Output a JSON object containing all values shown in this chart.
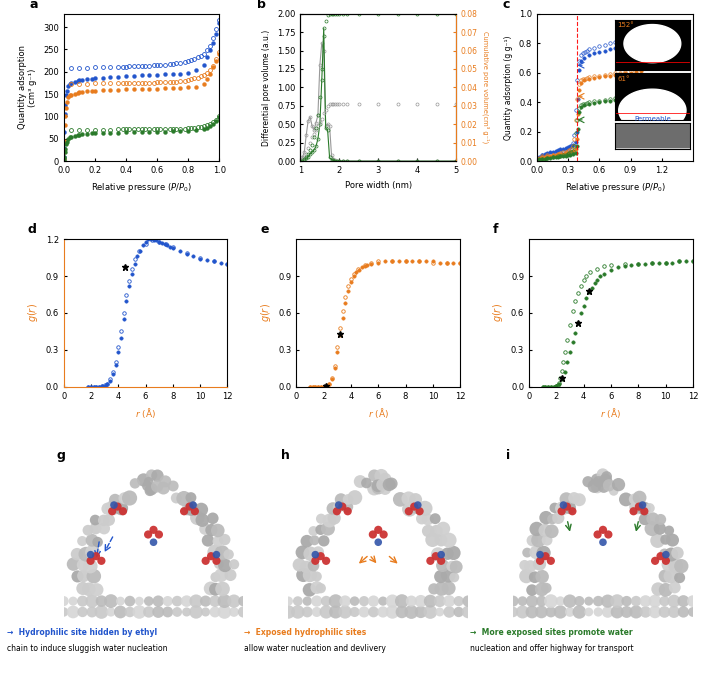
{
  "panel_a": {
    "p_ads": [
      0.001,
      0.003,
      0.005,
      0.008,
      0.01,
      0.015,
      0.02,
      0.03,
      0.04,
      0.05,
      0.07,
      0.09,
      0.1,
      0.12,
      0.15,
      0.18,
      0.2,
      0.25,
      0.3,
      0.35,
      0.4,
      0.45,
      0.5,
      0.55,
      0.6,
      0.65,
      0.7,
      0.75,
      0.8,
      0.85,
      0.9,
      0.92,
      0.94,
      0.96,
      0.98,
      1.0
    ],
    "blue_ads_q": [
      10,
      30,
      65,
      105,
      125,
      148,
      158,
      168,
      172,
      175,
      178,
      180,
      181,
      182,
      183,
      184,
      185,
      187,
      188,
      189,
      190,
      191,
      192,
      193,
      193,
      194,
      195,
      196,
      198,
      203,
      215,
      232,
      248,
      265,
      285,
      310
    ],
    "blue_des_p": [
      1.0,
      0.98,
      0.96,
      0.94,
      0.92,
      0.9,
      0.88,
      0.86,
      0.84,
      0.82,
      0.8,
      0.78,
      0.75,
      0.72,
      0.7,
      0.68,
      0.65,
      0.62,
      0.6,
      0.58,
      0.55,
      0.52,
      0.5,
      0.48,
      0.45,
      0.42,
      0.4,
      0.38,
      0.35,
      0.3,
      0.25,
      0.2,
      0.15,
      0.1,
      0.05
    ],
    "blue_des_q": [
      315,
      295,
      275,
      258,
      248,
      240,
      235,
      232,
      228,
      226,
      224,
      222,
      220,
      219,
      218,
      217,
      216,
      215,
      215,
      214,
      213,
      213,
      213,
      212,
      212,
      212,
      211,
      211,
      211,
      210,
      210,
      210,
      209,
      209,
      209
    ],
    "orange_ads_q": [
      5,
      20,
      45,
      80,
      100,
      120,
      132,
      143,
      147,
      149,
      151,
      153,
      154,
      155,
      156,
      157,
      158,
      159,
      160,
      160,
      161,
      161,
      162,
      162,
      162,
      163,
      163,
      164,
      165,
      166,
      172,
      183,
      195,
      210,
      225,
      240
    ],
    "orange_des_p": [
      1.0,
      0.98,
      0.96,
      0.94,
      0.92,
      0.9,
      0.88,
      0.86,
      0.84,
      0.82,
      0.8,
      0.78,
      0.75,
      0.72,
      0.7,
      0.68,
      0.65,
      0.62,
      0.6,
      0.58,
      0.55,
      0.52,
      0.5,
      0.48,
      0.45,
      0.42,
      0.4,
      0.38,
      0.35,
      0.3,
      0.25,
      0.2,
      0.15,
      0.1,
      0.05
    ],
    "orange_des_q": [
      245,
      228,
      213,
      205,
      198,
      193,
      190,
      187,
      185,
      183,
      181,
      180,
      179,
      178,
      177,
      177,
      176,
      176,
      176,
      175,
      175,
      175,
      175,
      175,
      175,
      175,
      174,
      174,
      174,
      174,
      174,
      174,
      173,
      173,
      173
    ],
    "green_ads_q": [
      1,
      5,
      10,
      20,
      28,
      38,
      44,
      50,
      53,
      55,
      57,
      58,
      59,
      60,
      61,
      62,
      62,
      63,
      64,
      64,
      65,
      65,
      65,
      66,
      66,
      66,
      67,
      67,
      68,
      69,
      71,
      74,
      78,
      84,
      90,
      98
    ],
    "green_des_p": [
      1.0,
      0.98,
      0.96,
      0.94,
      0.92,
      0.9,
      0.88,
      0.86,
      0.84,
      0.82,
      0.8,
      0.78,
      0.75,
      0.72,
      0.7,
      0.68,
      0.65,
      0.62,
      0.6,
      0.58,
      0.55,
      0.52,
      0.5,
      0.48,
      0.45,
      0.42,
      0.4,
      0.38,
      0.35,
      0.3,
      0.25,
      0.2,
      0.15,
      0.1,
      0.05
    ],
    "green_des_q": [
      100,
      93,
      87,
      83,
      80,
      78,
      77,
      76,
      75,
      74,
      74,
      73,
      73,
      73,
      72,
      72,
      72,
      72,
      72,
      71,
      71,
      71,
      71,
      71,
      71,
      71,
      71,
      71,
      71,
      70,
      70,
      70,
      70,
      70,
      70
    ],
    "xlabel": "Relative pressure ($P/P_0$)",
    "ylabel": "Quantity adsorption\n(cm³ g⁻¹)",
    "ylim": [
      0,
      330
    ],
    "xlim": [
      0,
      1.0
    ],
    "label": "a"
  },
  "panel_b": {
    "pore_widths_fine": [
      1.0,
      1.05,
      1.1,
      1.15,
      1.2,
      1.25,
      1.3,
      1.35,
      1.4,
      1.45,
      1.5,
      1.55,
      1.6,
      1.65,
      1.7,
      1.75,
      1.8,
      1.85,
      1.9,
      1.95,
      2.0,
      2.1,
      2.2,
      2.5,
      3.0,
      3.5,
      4.0,
      4.5,
      5.0
    ],
    "diff_pore_vol_gray": [
      0.0,
      0.05,
      0.12,
      0.35,
      0.55,
      0.6,
      0.48,
      0.42,
      0.52,
      0.62,
      1.3,
      1.6,
      1.5,
      0.48,
      0.5,
      0.48,
      0.08,
      0.03,
      0.01,
      0.005,
      0.003,
      0.002,
      0.001,
      0.0,
      0.0,
      0.0,
      0.0,
      0.0,
      0.0
    ],
    "diff_pore_vol_green": [
      0.0,
      0.0,
      0.02,
      0.04,
      0.06,
      0.1,
      0.12,
      0.15,
      0.2,
      0.3,
      0.5,
      1.1,
      1.8,
      0.45,
      0.42,
      0.05,
      0.02,
      0.01,
      0.005,
      0.002,
      0.001,
      0.0,
      0.0,
      0.0,
      0.0,
      0.0,
      0.0,
      0.0,
      0.0
    ],
    "cum_pore_vol_gray": [
      0.0,
      0.001,
      0.002,
      0.004,
      0.007,
      0.01,
      0.013,
      0.015,
      0.017,
      0.019,
      0.021,
      0.023,
      0.026,
      0.028,
      0.03,
      0.031,
      0.031,
      0.031,
      0.031,
      0.031,
      0.031,
      0.031,
      0.031,
      0.031,
      0.031,
      0.031,
      0.031,
      0.031,
      0.031
    ],
    "cum_pore_vol_green": [
      0.0,
      0.0,
      0.001,
      0.002,
      0.004,
      0.006,
      0.009,
      0.013,
      0.018,
      0.025,
      0.035,
      0.05,
      0.068,
      0.076,
      0.079,
      0.08,
      0.08,
      0.08,
      0.08,
      0.08,
      0.08,
      0.08,
      0.08,
      0.08,
      0.08,
      0.08,
      0.08,
      0.08,
      0.08
    ],
    "xlabel": "Pore width (nm)",
    "ylabel_left": "Differential pore volume (a.u.)",
    "ylabel_right": "Cumulative pore volume(cm³ g⁻¹)",
    "ylim_left": [
      0,
      2.0
    ],
    "ylim_right": [
      0,
      0.08
    ],
    "xlim": [
      1.0,
      5.0
    ],
    "label": "b"
  },
  "panel_c": {
    "blue_ads_p": [
      0.0,
      0.02,
      0.05,
      0.08,
      0.1,
      0.12,
      0.15,
      0.18,
      0.2,
      0.22,
      0.25,
      0.28,
      0.3,
      0.32,
      0.35,
      0.37,
      0.38,
      0.39,
      0.4,
      0.42,
      0.45,
      0.5,
      0.55,
      0.6,
      0.65,
      0.7,
      0.75,
      0.8,
      0.85,
      0.9,
      0.95,
      1.0
    ],
    "blue_ads_q": [
      0.02,
      0.03,
      0.04,
      0.05,
      0.055,
      0.06,
      0.065,
      0.07,
      0.075,
      0.08,
      0.085,
      0.09,
      0.095,
      0.1,
      0.11,
      0.13,
      0.2,
      0.42,
      0.62,
      0.68,
      0.7,
      0.72,
      0.73,
      0.74,
      0.75,
      0.76,
      0.77,
      0.78,
      0.79,
      0.8,
      0.82,
      0.84
    ],
    "blue_des_p": [
      1.0,
      0.95,
      0.9,
      0.85,
      0.8,
      0.75,
      0.7,
      0.65,
      0.6,
      0.55,
      0.5,
      0.48,
      0.46,
      0.44,
      0.42,
      0.4,
      0.38,
      0.37,
      0.36,
      0.35,
      0.33,
      0.31,
      0.3,
      0.28,
      0.25,
      0.22,
      0.2,
      0.15,
      0.1,
      0.05
    ],
    "blue_des_q": [
      0.88,
      0.86,
      0.84,
      0.83,
      0.82,
      0.81,
      0.8,
      0.79,
      0.78,
      0.77,
      0.76,
      0.75,
      0.74,
      0.73,
      0.72,
      0.68,
      0.55,
      0.35,
      0.18,
      0.12,
      0.1,
      0.09,
      0.085,
      0.08,
      0.07,
      0.065,
      0.06,
      0.055,
      0.05,
      0.045
    ],
    "orange_ads_p": [
      0.0,
      0.02,
      0.05,
      0.08,
      0.1,
      0.12,
      0.15,
      0.18,
      0.2,
      0.22,
      0.25,
      0.28,
      0.3,
      0.32,
      0.35,
      0.37,
      0.38,
      0.39,
      0.4,
      0.42,
      0.45,
      0.5,
      0.55,
      0.6,
      0.65,
      0.7,
      0.75,
      0.8,
      0.85,
      0.9,
      0.95,
      1.0
    ],
    "orange_ads_q": [
      0.015,
      0.02,
      0.025,
      0.03,
      0.035,
      0.038,
      0.04,
      0.043,
      0.046,
      0.048,
      0.052,
      0.055,
      0.058,
      0.062,
      0.068,
      0.08,
      0.15,
      0.32,
      0.48,
      0.53,
      0.55,
      0.56,
      0.565,
      0.57,
      0.575,
      0.58,
      0.585,
      0.59,
      0.595,
      0.6,
      0.605,
      0.61
    ],
    "orange_des_p": [
      1.0,
      0.95,
      0.9,
      0.85,
      0.8,
      0.75,
      0.7,
      0.65,
      0.6,
      0.55,
      0.5,
      0.48,
      0.46,
      0.44,
      0.42,
      0.4,
      0.38,
      0.37,
      0.36,
      0.35,
      0.33,
      0.31,
      0.3,
      0.28,
      0.25,
      0.22,
      0.2,
      0.15,
      0.1,
      0.05
    ],
    "orange_des_q": [
      0.63,
      0.62,
      0.61,
      0.605,
      0.6,
      0.595,
      0.59,
      0.585,
      0.58,
      0.575,
      0.57,
      0.565,
      0.56,
      0.555,
      0.55,
      0.52,
      0.42,
      0.28,
      0.15,
      0.1,
      0.085,
      0.075,
      0.07,
      0.065,
      0.06,
      0.055,
      0.05,
      0.045,
      0.04,
      0.035
    ],
    "green_ads_p": [
      0.0,
      0.02,
      0.05,
      0.08,
      0.1,
      0.12,
      0.15,
      0.18,
      0.2,
      0.22,
      0.25,
      0.28,
      0.3,
      0.32,
      0.35,
      0.37,
      0.38,
      0.39,
      0.4,
      0.42,
      0.45,
      0.5,
      0.55,
      0.6,
      0.65,
      0.7,
      0.75,
      0.8,
      0.85,
      0.9,
      0.95,
      1.0
    ],
    "green_ads_q": [
      0.01,
      0.012,
      0.015,
      0.018,
      0.02,
      0.022,
      0.025,
      0.028,
      0.03,
      0.032,
      0.035,
      0.038,
      0.04,
      0.043,
      0.048,
      0.056,
      0.1,
      0.22,
      0.33,
      0.37,
      0.38,
      0.39,
      0.395,
      0.4,
      0.405,
      0.41,
      0.415,
      0.42,
      0.425,
      0.43,
      0.435,
      0.44
    ],
    "green_des_p": [
      1.0,
      0.95,
      0.9,
      0.85,
      0.8,
      0.75,
      0.7,
      0.65,
      0.6,
      0.55,
      0.5,
      0.48,
      0.46,
      0.44,
      0.42,
      0.4,
      0.38,
      0.37,
      0.36,
      0.35,
      0.33,
      0.31,
      0.3,
      0.28,
      0.25,
      0.22,
      0.2,
      0.15,
      0.1,
      0.05
    ],
    "green_des_q": [
      0.46,
      0.45,
      0.44,
      0.435,
      0.43,
      0.425,
      0.42,
      0.415,
      0.41,
      0.405,
      0.4,
      0.395,
      0.39,
      0.385,
      0.38,
      0.36,
      0.28,
      0.19,
      0.1,
      0.07,
      0.06,
      0.055,
      0.05,
      0.045,
      0.04,
      0.035,
      0.032,
      0.028,
      0.022,
      0.018
    ],
    "vline_x": 0.38,
    "xlabel": "Relative pressure ($P/P_0$)",
    "ylabel": "Quantity adsorption (g g⁻¹)",
    "xlim": [
      0,
      1.5
    ],
    "label": "c"
  },
  "panel_d": {
    "r_filled": [
      1.8,
      2.0,
      2.2,
      2.4,
      2.6,
      2.8,
      3.0,
      3.2,
      3.4,
      3.6,
      3.8,
      4.0,
      4.2,
      4.4,
      4.6,
      4.8,
      5.0,
      5.2,
      5.4,
      5.6,
      5.8,
      6.0,
      6.2,
      6.4,
      6.6,
      6.8,
      7.0,
      7.2,
      7.4,
      7.6,
      7.8,
      8.0,
      8.5,
      9.0,
      9.5,
      10.0,
      10.5,
      11.0,
      11.5,
      12.0
    ],
    "g_filled": [
      0.0,
      0.0,
      0.0,
      0.0,
      0.0,
      0.005,
      0.01,
      0.02,
      0.05,
      0.1,
      0.18,
      0.28,
      0.4,
      0.55,
      0.7,
      0.82,
      0.92,
      1.0,
      1.06,
      1.1,
      1.15,
      1.18,
      1.2,
      1.2,
      1.19,
      1.19,
      1.18,
      1.17,
      1.16,
      1.15,
      1.14,
      1.13,
      1.1,
      1.08,
      1.06,
      1.04,
      1.03,
      1.02,
      1.01,
      1.0
    ],
    "r_open": [
      1.8,
      2.0,
      2.2,
      2.4,
      2.6,
      2.8,
      3.0,
      3.2,
      3.4,
      3.6,
      3.8,
      4.0,
      4.2,
      4.4,
      4.6,
      4.8,
      5.0,
      5.2,
      5.5,
      6.0,
      6.5,
      7.0,
      7.5,
      8.0,
      9.0,
      10.0,
      11.0,
      12.0
    ],
    "g_open": [
      0.0,
      0.0,
      0.0,
      0.0,
      0.0,
      0.006,
      0.012,
      0.022,
      0.06,
      0.12,
      0.2,
      0.32,
      0.45,
      0.6,
      0.75,
      0.86,
      0.96,
      1.04,
      1.1,
      1.16,
      1.19,
      1.18,
      1.16,
      1.14,
      1.09,
      1.05,
      1.02,
      1.0
    ],
    "color": "#2255cc",
    "xlabel": "$r$ (Å)",
    "ylabel": "$g(r)$",
    "xlim": [
      0,
      12
    ],
    "ylim": [
      0,
      1.2
    ],
    "yticks": [
      0.0,
      0.3,
      0.6,
      0.9,
      1.2
    ],
    "label": "d",
    "star_r": [
      4.5
    ],
    "star_g": [
      0.97
    ]
  },
  "panel_e": {
    "r_filled": [
      1.0,
      1.2,
      1.4,
      1.6,
      1.8,
      2.0,
      2.2,
      2.4,
      2.6,
      2.8,
      3.0,
      3.2,
      3.4,
      3.6,
      3.8,
      4.0,
      4.2,
      4.4,
      4.6,
      4.8,
      5.0,
      5.2,
      5.5,
      6.0,
      6.5,
      7.0,
      7.5,
      8.0,
      8.5,
      9.0,
      9.5,
      10.0,
      10.5,
      11.0,
      11.5,
      12.0
    ],
    "g_filled": [
      0.0,
      0.0,
      0.0,
      0.0,
      0.0,
      0.0,
      0.005,
      0.02,
      0.06,
      0.15,
      0.28,
      0.42,
      0.56,
      0.68,
      0.78,
      0.85,
      0.9,
      0.93,
      0.95,
      0.97,
      0.98,
      0.99,
      1.0,
      1.01,
      1.02,
      1.02,
      1.02,
      1.02,
      1.02,
      1.02,
      1.02,
      1.02,
      1.01,
      1.01,
      1.01,
      1.01
    ],
    "r_open": [
      1.0,
      1.2,
      1.4,
      1.6,
      1.8,
      2.0,
      2.2,
      2.4,
      2.6,
      2.8,
      3.0,
      3.2,
      3.4,
      3.6,
      3.8,
      4.0,
      4.2,
      4.5,
      5.0,
      5.5,
      6.0,
      7.0,
      8.0,
      9.0,
      10.0,
      11.0,
      12.0
    ],
    "g_open": [
      0.0,
      0.0,
      0.0,
      0.0,
      0.0,
      0.0,
      0.006,
      0.025,
      0.07,
      0.17,
      0.32,
      0.48,
      0.62,
      0.73,
      0.82,
      0.88,
      0.92,
      0.96,
      0.99,
      1.01,
      1.02,
      1.02,
      1.02,
      1.02,
      1.01,
      1.01,
      1.01
    ],
    "color": "#e87c1e",
    "xlabel": "$r$ (Å)",
    "ylabel": "$g(r)$",
    "xlim": [
      0,
      12
    ],
    "ylim": [
      0,
      1.2
    ],
    "yticks": [
      0.0,
      0.3,
      0.6,
      0.9
    ],
    "label": "e",
    "star_r": [
      2.2,
      3.2
    ],
    "star_g": [
      0.006,
      0.43
    ]
  },
  "panel_f": {
    "r_filled": [
      1.0,
      1.2,
      1.4,
      1.6,
      1.8,
      2.0,
      2.2,
      2.4,
      2.6,
      2.8,
      3.0,
      3.2,
      3.4,
      3.6,
      3.8,
      4.0,
      4.2,
      4.4,
      4.6,
      4.8,
      5.0,
      5.2,
      5.5,
      6.0,
      6.5,
      7.0,
      7.5,
      8.0,
      8.5,
      9.0,
      9.5,
      10.0,
      10.5,
      11.0,
      11.5,
      12.0
    ],
    "g_filled": [
      0.0,
      0.0,
      0.0,
      0.0,
      0.0,
      0.005,
      0.02,
      0.06,
      0.12,
      0.2,
      0.28,
      0.36,
      0.44,
      0.52,
      0.6,
      0.66,
      0.72,
      0.77,
      0.8,
      0.84,
      0.87,
      0.9,
      0.92,
      0.95,
      0.97,
      0.98,
      0.99,
      1.0,
      1.0,
      1.01,
      1.01,
      1.01,
      1.01,
      1.02,
      1.02,
      1.02
    ],
    "r_open": [
      1.0,
      1.2,
      1.4,
      1.6,
      1.8,
      2.0,
      2.1,
      2.2,
      2.3,
      2.4,
      2.5,
      2.6,
      2.8,
      3.0,
      3.2,
      3.4,
      3.6,
      3.8,
      4.0,
      4.2,
      4.5,
      5.0,
      5.5,
      6.0,
      7.0,
      8.0,
      9.0,
      10.0,
      11.0,
      12.0
    ],
    "g_open": [
      0.0,
      0.0,
      0.0,
      0.0,
      0.0,
      0.006,
      0.015,
      0.03,
      0.07,
      0.13,
      0.2,
      0.28,
      0.38,
      0.5,
      0.62,
      0.7,
      0.76,
      0.82,
      0.87,
      0.9,
      0.93,
      0.96,
      0.98,
      0.99,
      1.0,
      1.0,
      1.01,
      1.01,
      1.02,
      1.02
    ],
    "color": "#2a7a2a",
    "xlabel": "$r$ (Å)",
    "ylabel": "$g(r)$",
    "xlim": [
      0,
      12
    ],
    "ylim": [
      0,
      1.2
    ],
    "yticks": [
      0.0,
      0.3,
      0.6,
      0.9
    ],
    "label": "f",
    "star_r": [
      2.4,
      3.6,
      4.4
    ],
    "star_g": [
      0.07,
      0.52,
      0.78
    ]
  },
  "colors": {
    "blue": "#2255cc",
    "orange": "#e87c1e",
    "green": "#2a7a2a",
    "gray": "#888888"
  },
  "legend_texts": {
    "g_line1": "→  Hydrophilic site hidden by ethyl",
    "g_line2": "chain to induce sluggish water nucleation",
    "h_line1": "→  Exposed hydrophilic sites",
    "h_line2": "allow water nucleation and devlivery",
    "i_line1": "→  More exposed sites promote water",
    "i_line2": "nucleation and offer highway for transport"
  }
}
